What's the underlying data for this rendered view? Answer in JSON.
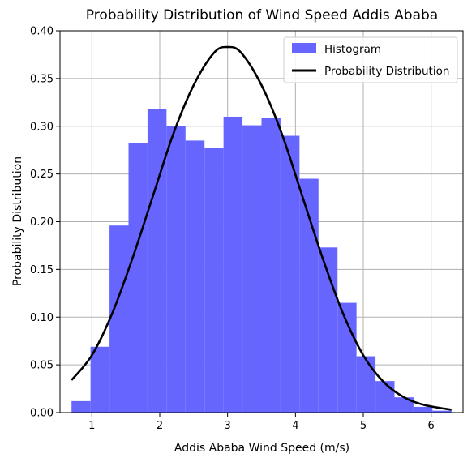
{
  "chart_data": {
    "type": "bar",
    "title": "Probability Distribution of Wind Speed Addis Ababa",
    "xlabel": "Addis Ababa Wind Speed (m/s)",
    "ylabel": "Probability Distribution",
    "xlim": [
      0.53,
      6.47
    ],
    "ylim": [
      0,
      0.4
    ],
    "x_ticks": [
      1,
      2,
      3,
      4,
      5,
      6
    ],
    "y_ticks": [
      0.0,
      0.05,
      0.1,
      0.15,
      0.2,
      0.25,
      0.3,
      0.35,
      0.4
    ],
    "x_tick_labels": [
      "1",
      "2",
      "3",
      "4",
      "5",
      "6"
    ],
    "y_tick_labels": [
      "0.00",
      "0.05",
      "0.10",
      "0.15",
      "0.20",
      "0.25",
      "0.30",
      "0.35",
      "0.40"
    ],
    "grid": true,
    "legend_position": "top-right",
    "histogram": {
      "name": "Histogram",
      "color": "#6666ff",
      "bins": [
        {
          "x0": 0.7,
          "x1": 0.98,
          "value": 0.012
        },
        {
          "x0": 0.98,
          "x1": 1.26,
          "value": 0.069
        },
        {
          "x0": 1.26,
          "x1": 1.54,
          "value": 0.196
        },
        {
          "x0": 1.54,
          "x1": 1.82,
          "value": 0.282
        },
        {
          "x0": 1.82,
          "x1": 2.1,
          "value": 0.318
        },
        {
          "x0": 2.1,
          "x1": 2.38,
          "value": 0.3
        },
        {
          "x0": 2.38,
          "x1": 2.66,
          "value": 0.285
        },
        {
          "x0": 2.66,
          "x1": 2.94,
          "value": 0.277
        },
        {
          "x0": 2.94,
          "x1": 3.22,
          "value": 0.31
        },
        {
          "x0": 3.22,
          "x1": 3.5,
          "value": 0.301
        },
        {
          "x0": 3.5,
          "x1": 3.78,
          "value": 0.309
        },
        {
          "x0": 3.78,
          "x1": 4.06,
          "value": 0.29
        },
        {
          "x0": 4.06,
          "x1": 4.34,
          "value": 0.245
        },
        {
          "x0": 4.34,
          "x1": 4.62,
          "value": 0.173
        },
        {
          "x0": 4.62,
          "x1": 4.9,
          "value": 0.115
        },
        {
          "x0": 4.9,
          "x1": 5.18,
          "value": 0.059
        },
        {
          "x0": 5.18,
          "x1": 5.46,
          "value": 0.033
        },
        {
          "x0": 5.46,
          "x1": 5.74,
          "value": 0.016
        },
        {
          "x0": 5.74,
          "x1": 6.02,
          "value": 0.006
        },
        {
          "x0": 6.02,
          "x1": 6.3,
          "value": 0.002
        }
      ]
    },
    "distribution": {
      "name": "Probability Distribution",
      "color": "#000000",
      "x": [
        0.7,
        1.0,
        1.3,
        1.6,
        1.9,
        2.2,
        2.5,
        2.8,
        3.0,
        3.2,
        3.5,
        3.8,
        4.1,
        4.4,
        4.7,
        5.0,
        5.3,
        5.6,
        5.9,
        6.3
      ],
      "y": [
        0.034,
        0.06,
        0.104,
        0.162,
        0.227,
        0.292,
        0.343,
        0.377,
        0.383,
        0.377,
        0.343,
        0.292,
        0.227,
        0.162,
        0.104,
        0.06,
        0.032,
        0.016,
        0.008,
        0.003
      ]
    }
  }
}
